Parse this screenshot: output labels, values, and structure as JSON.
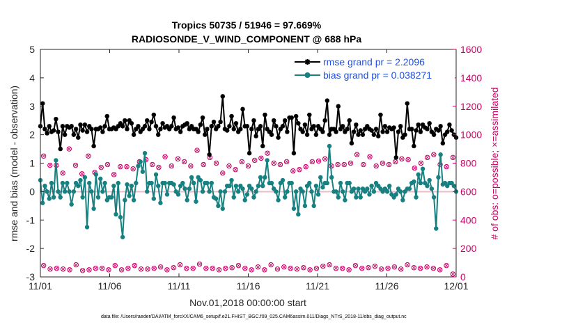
{
  "chart_data": {
    "type": "line",
    "title": "Tropics 50735 / 51946 = 97.669%",
    "subtitle": "RADIOSONDE_V_WIND_COMPONENT @ 688 hPa",
    "xlabel": "Nov.01,2018 00:00:00 start",
    "ylabel": "rmse and bias (model - observation)",
    "y2label": "# of obs: o=possible; ×=assimilated",
    "xlim": [
      0,
      30
    ],
    "ylim": [
      -3,
      5
    ],
    "y2lim": [
      0,
      1600
    ],
    "xticks": [
      0,
      5,
      10,
      15,
      20,
      25,
      30
    ],
    "xtick_labels": [
      "11/01",
      "11/06",
      "11/11",
      "11/16",
      "11/21",
      "11/26",
      "12/01"
    ],
    "yticks": [
      -3,
      -2,
      -1,
      0,
      1,
      2,
      3,
      4,
      5
    ],
    "ytick_labels": [
      "-3",
      "-2",
      "-1",
      "0",
      "1",
      "2",
      "3",
      "4",
      "5"
    ],
    "y2ticks": [
      0,
      200,
      400,
      600,
      800,
      1000,
      1200,
      1400,
      1600
    ],
    "y2tick_labels": [
      "0",
      "200",
      "400",
      "600",
      "800",
      "1000",
      "1200",
      "1400",
      "1600"
    ],
    "legend_position": "top-right",
    "colors": {
      "rmse": "#000000",
      "bias": "#178080",
      "obs": "#cc0066",
      "zero_line": "#f0b8c8",
      "legend_text": "#1f4fe0"
    },
    "series": [
      {
        "name": "rmse grand pr = 2.2096",
        "axis": "left",
        "values": [
          2.3,
          3.1,
          2.2,
          2.05,
          2.3,
          2.1,
          2.15,
          2.55,
          2.1,
          1.5,
          2.3,
          2.0,
          2.3,
          2.25,
          2.3,
          2.0,
          2.2,
          1.9,
          2.35,
          2.15,
          2.35,
          2.1,
          2.3,
          2.2,
          1.6,
          2.2,
          2.2,
          2.25,
          2.1,
          2.3,
          2.65,
          2.2,
          2.2,
          2.25,
          2.2,
          2.3,
          2.4,
          2.3,
          2.5,
          2.2,
          2.5,
          2.4,
          2.0,
          2.2,
          2.3,
          2.1,
          2.2,
          2.3,
          2.5,
          2.2,
          2.45,
          2.7,
          2.3,
          2.0,
          2.2,
          2.4,
          2.25,
          2.3,
          2.2,
          2.3,
          2.6,
          2.2,
          2.25,
          2.1,
          2.3,
          2.35,
          2.4,
          2.2,
          2.3,
          2.2,
          2.2,
          2.1,
          2.35,
          2.6,
          2.0,
          2.2,
          1.3,
          2.3,
          2.45,
          2.2,
          2.3,
          2.45,
          3.35,
          2.2,
          2.15,
          2.3,
          2.65,
          2.2,
          2.4,
          2.1,
          2.2,
          2.9,
          2.3,
          2.3,
          1.35,
          2.2,
          2.5,
          1.95,
          2.2,
          2.3,
          1.6,
          2.7,
          2.2,
          2.1,
          2.0,
          2.5,
          2.3,
          1.9,
          2.2,
          2.3,
          2.5,
          2.1,
          2.6,
          2.6,
          1.35,
          2.65,
          2.4,
          2.2,
          2.1,
          2.35,
          2.0,
          2.7,
          2.2,
          2.3,
          2.0,
          2.3,
          2.2,
          2.1,
          2.5,
          3.2,
          2.0,
          2.2,
          2.2,
          2.1,
          3.0,
          2.2,
          2.3,
          2.1,
          2.2,
          2.5,
          1.7,
          2.1,
          2.35,
          2.0,
          2.15,
          2.0,
          2.2,
          2.3,
          2.2,
          2.15,
          2.0,
          2.2,
          1.95,
          2.7,
          2.1,
          2.3,
          2.1,
          2.25,
          2.2,
          2.25,
          1.2,
          2.1,
          2.3,
          1.9,
          2.0,
          3.1,
          2.2,
          2.2,
          1.6,
          2.15,
          2.35,
          2.1,
          2.35,
          2.25,
          2.2,
          2.4,
          2.1,
          2.0,
          2.2,
          2.15,
          2.3,
          1.7,
          2.0,
          2.1,
          2.35,
          2.15,
          2.0,
          1.9
        ]
      },
      {
        "name": "bias grand pr = 0.038271",
        "axis": "left",
        "values": [
          0.4,
          -0.4,
          0.2,
          0.0,
          -0.25,
          0.3,
          -0.2,
          1.1,
          0.0,
          -0.2,
          0.3,
          0.0,
          0.3,
          0.0,
          -0.45,
          0.0,
          0.3,
          0.2,
          0.4,
          -0.2,
          0.5,
          -1.25,
          0.3,
          0.0,
          -0.6,
          0.6,
          -0.2,
          0.45,
          0.0,
          0.3,
          -0.3,
          -0.2,
          -0.2,
          0.2,
          -0.8,
          0.3,
          -0.9,
          -1.6,
          -0.3,
          0.25,
          -0.15,
          0.2,
          -0.3,
          0.3,
          0.9,
          1.05,
          0.7,
          1.35,
          0.0,
          0.3,
          0.3,
          -0.25,
          0.6,
          0.2,
          -0.4,
          0.3,
          0.3,
          -0.1,
          0.3,
          0.3,
          0.25,
          0.0,
          -0.1,
          0.2,
          0.3,
          0.1,
          -0.3,
          0.1,
          0.5,
          0.3,
          -0.35,
          0.5,
          0.4,
          0.0,
          0.3,
          0.3,
          0.0,
          0.3,
          -0.2,
          -0.25,
          -0.5,
          0.0,
          -0.6,
          0.0,
          0.2,
          0.2,
          0.4,
          -0.2,
          0.2,
          0.0,
          0.2,
          0.1,
          -0.3,
          -0.1,
          0.2,
          0.1,
          -0.2,
          0.0,
          0.2,
          0.5,
          0.2,
          0.5,
          1.1,
          0.3,
          0.3,
          0.1,
          0.0,
          -0.3,
          0.3,
          0.4,
          -0.2,
          0.0,
          0.3,
          0.3,
          -0.6,
          0.0,
          -0.8,
          0.1,
          0.0,
          -0.5,
          0.2,
          0.3,
          0.0,
          -0.5,
          0.2,
          -0.1,
          0.5,
          0.15,
          0.3,
          0.3,
          1.6,
          0.5,
          0.0,
          0.0,
          -0.2,
          0.3,
          0.0,
          -0.3,
          0.3,
          0.3,
          0.0,
          0.1,
          -0.2,
          0.1,
          -0.2,
          0.1,
          0.0,
          0.1,
          -0.1,
          0.2,
          0.0,
          0.3,
          0.2,
          0.1,
          0.0,
          0.1,
          0.0,
          0.2,
          -0.1,
          -0.2,
          -0.1,
          0.1,
          0.0,
          -0.3,
          0.0,
          0.1,
          0.1,
          0.3,
          0.35,
          -0.2,
          0.6,
          0.3,
          0.8,
          0.3,
          0.2,
          0.4,
          0.1,
          -0.2,
          -1.3,
          0.5,
          1.3,
          0.25,
          0.3,
          0.2,
          0.3,
          0.3,
          0.2,
          0.0
        ]
      }
    ],
    "obs_counts": {
      "axis": "right",
      "possible_high": [
        850,
        785,
        785,
        730,
        900,
        785,
        725,
        850,
        735,
        770,
        790,
        720,
        775,
        775,
        760,
        810,
        825,
        790,
        770,
        845,
        780,
        830,
        810,
        780,
        890,
        790,
        840,
        800,
        730,
        780,
        755,
        810,
        780,
        820,
        835,
        870,
        800,
        790,
        810,
        745,
        755,
        775,
        810,
        815,
        830,
        780,
        790,
        790,
        800,
        860,
        790,
        845,
        780,
        800,
        790,
        810,
        830,
        825,
        765,
        800,
        840,
        860,
        790,
        775,
        840
      ],
      "possible_low": [
        80,
        55,
        60,
        55,
        50,
        85,
        45,
        50,
        60,
        60,
        50,
        80,
        50,
        60,
        80,
        55,
        55,
        60,
        70,
        50,
        65,
        85,
        60,
        60,
        90,
        60,
        60,
        50,
        60,
        65,
        80,
        60,
        50,
        70,
        50,
        85,
        55,
        70,
        60,
        55,
        65,
        50,
        60,
        75,
        85,
        60,
        60,
        50,
        80,
        60,
        65,
        75,
        55,
        60,
        70,
        55,
        85,
        65,
        60,
        70,
        60,
        50,
        80,
        20
      ]
    },
    "footnote": "data file: /Users/raeder/DAI/ATM_forcXX/CAM6_setup/f.e21.FHIST_BGC.f09_025.CAM6assim.011/Diags_NTrS_2018-11/obs_diag_output.nc"
  }
}
